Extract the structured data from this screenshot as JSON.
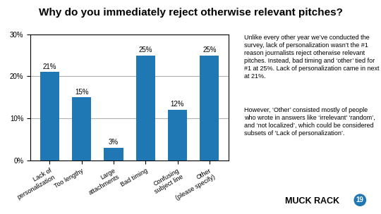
{
  "chart_data": {
    "type": "bar",
    "title": "Why do you immediately reject otherwise relevant pitches?",
    "categories": [
      "Lack of\npersonalization",
      "Too lengthy",
      "Large\nattachments",
      "Bad timing",
      "Confusing\nsubject line",
      "Other\n(please specify)"
    ],
    "values": [
      21,
      15,
      3,
      25,
      12,
      25
    ],
    "value_labels": [
      "21%",
      "15%",
      "3%",
      "25%",
      "12%",
      "25%"
    ],
    "data_labels": true,
    "ylim": [
      0,
      30
    ],
    "yticks": [
      {
        "value": 0,
        "label": "0%"
      },
      {
        "value": 10,
        "label": "10%"
      },
      {
        "value": 20,
        "label": "20%"
      },
      {
        "value": 30,
        "label": "30%"
      }
    ],
    "grid": true,
    "annotations": [
      "Unlike every other year we’ve conducted the survey, lack of personalization wasn’t the #1 reason journalists reject otherwise relevant pitches. Instead, bad timing and ‘other’ tied for #1 at 25%. Lack of personalization came in next at 21%.",
      "However, ‘Other’ consisted mostly of people who wrote in answers like ‘irrelevant’ ‘random’, and ‘not localized’, which could be considered subsets of ‘Lack of personalization’.",
      "MUCK RACK",
      "19"
    ]
  }
}
